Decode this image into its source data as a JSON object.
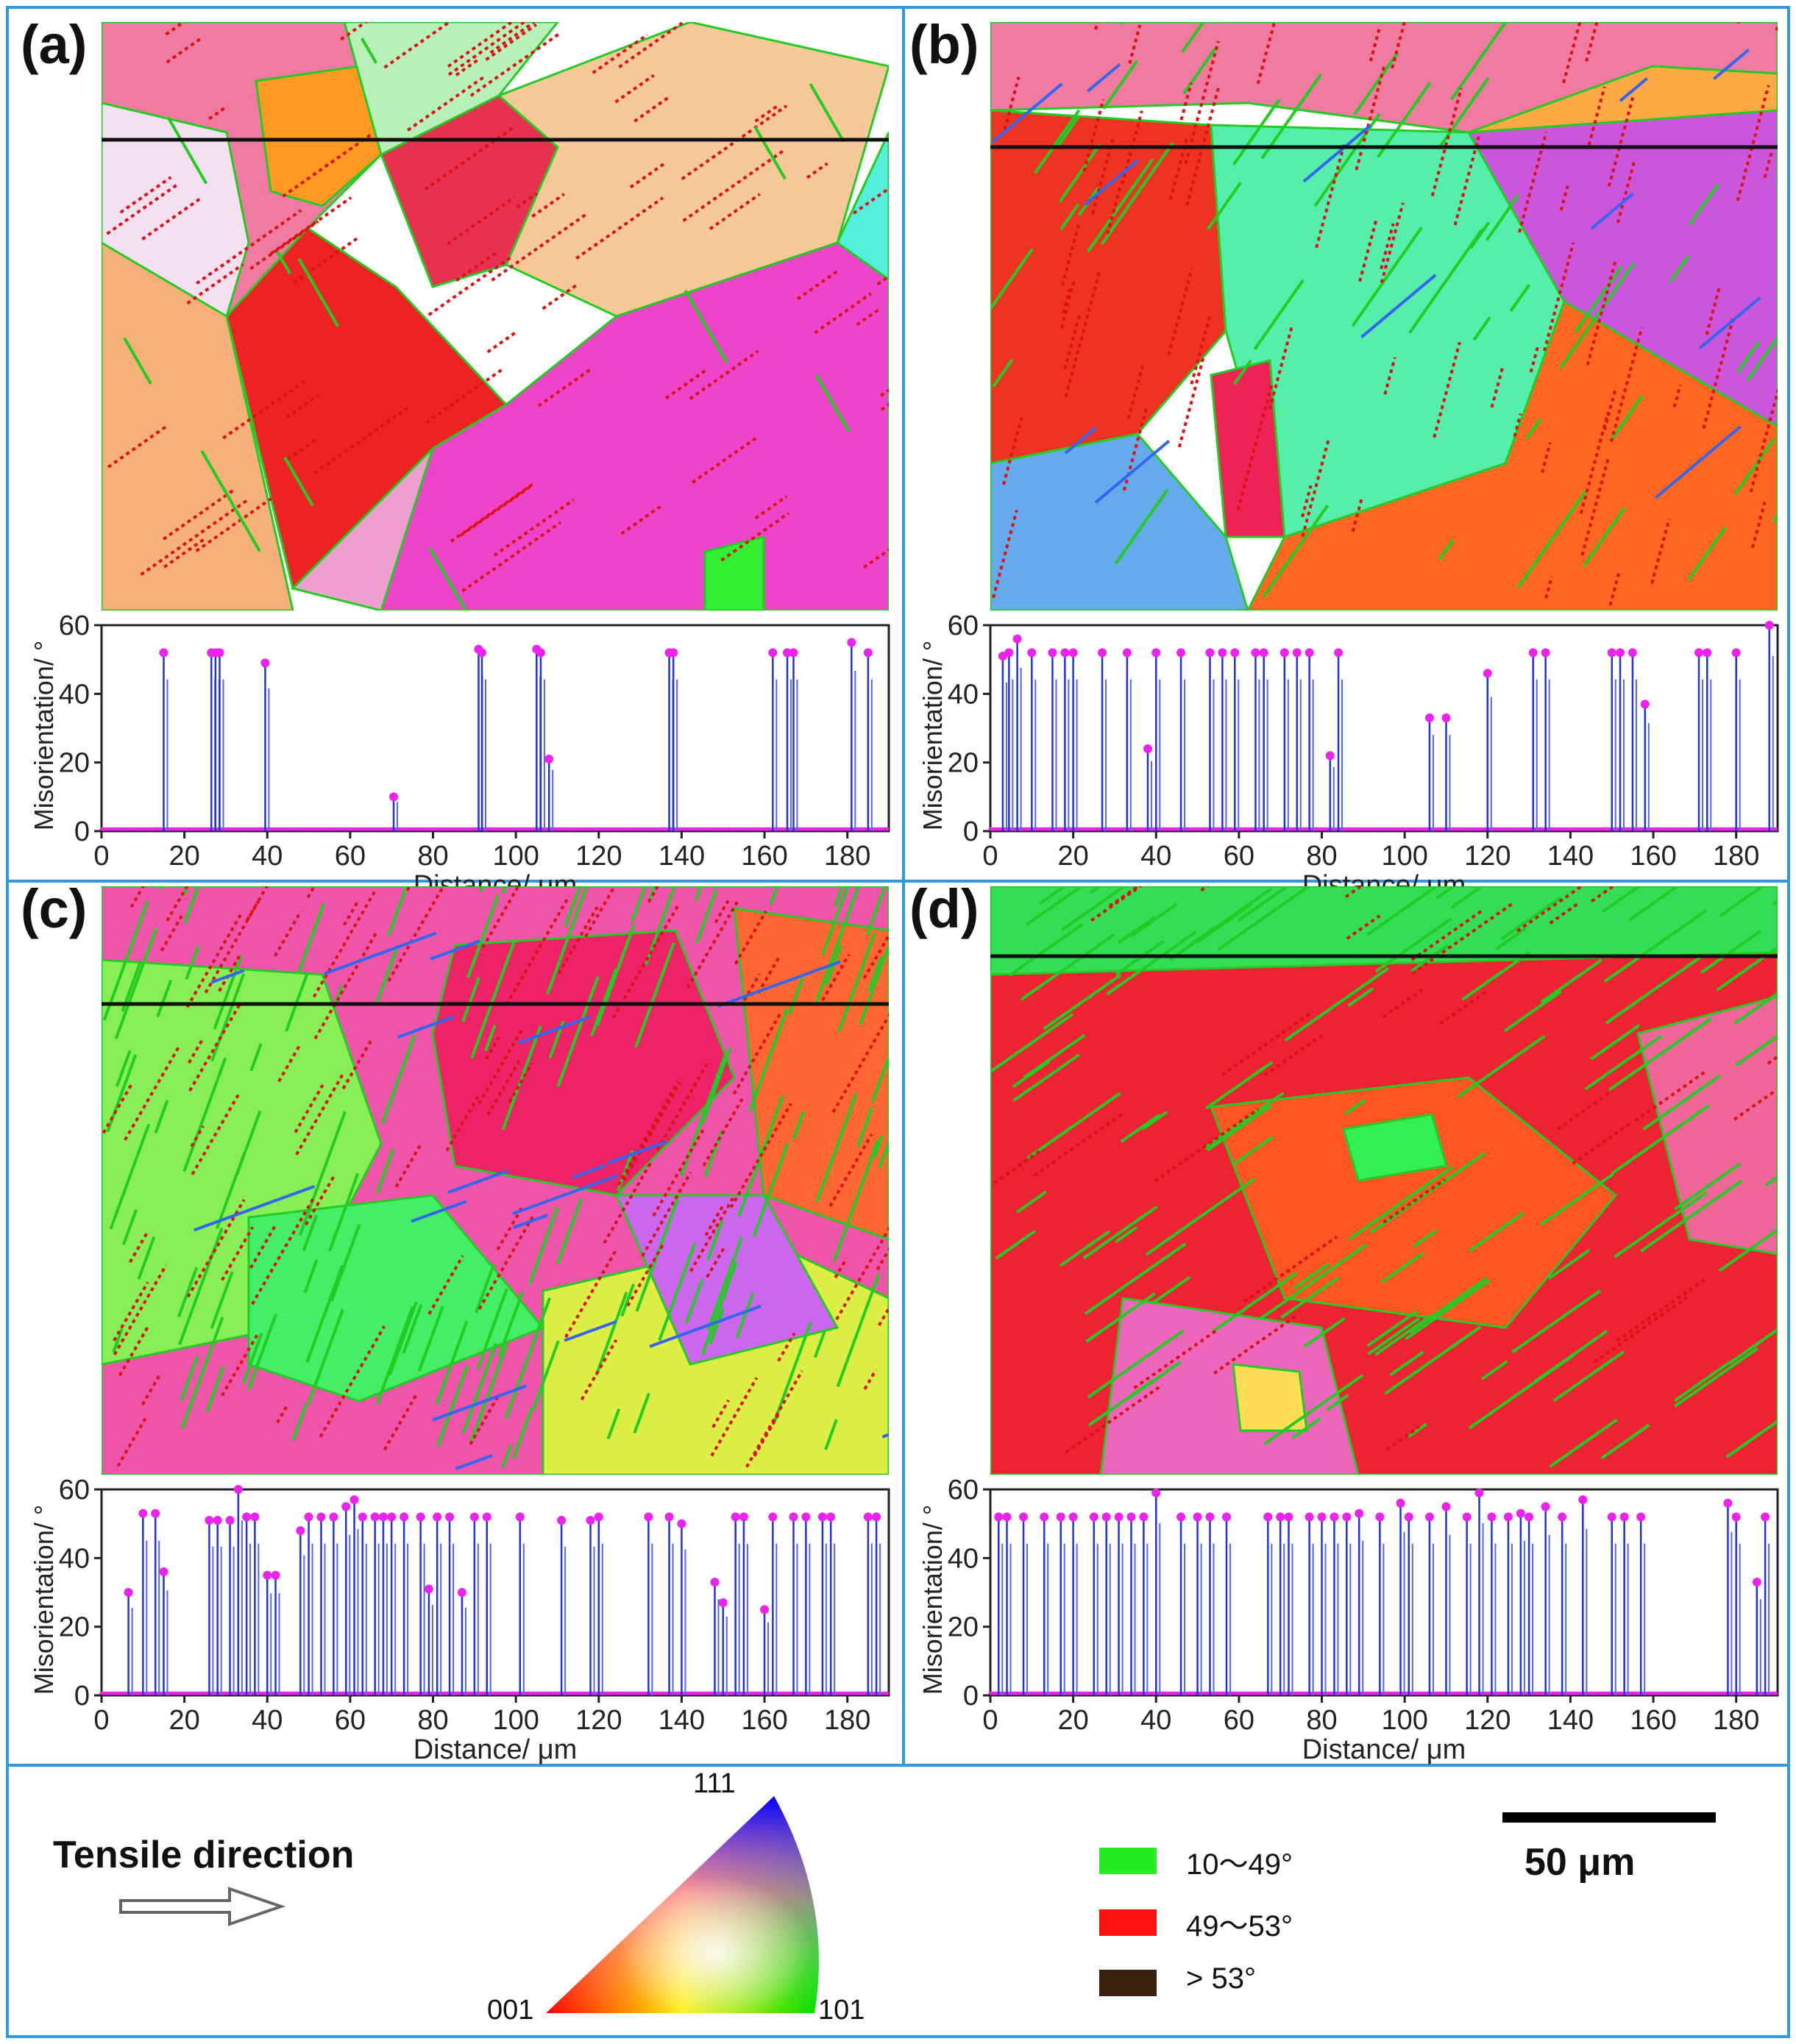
{
  "panels": [
    {
      "label": "(a)"
    },
    {
      "label": "(b)"
    },
    {
      "label": "(c)"
    },
    {
      "label": "(d)"
    }
  ],
  "map_colors": {
    "red": "#ee2222",
    "magenta": "#ee44cc",
    "pink": "#f07aa0",
    "orange": "#ff9922",
    "peach": "#f8b07a",
    "yellow": "#f0e04a",
    "green": "#33ee33",
    "cyan": "#33dddd",
    "blue": "#3366ee",
    "lightblue": "#aaccee",
    "boundary_red": "#dd1111",
    "boundary_green": "#22cc22"
  },
  "legend": {
    "tensile_label": "Tensile direction",
    "ipf_corners": {
      "top": "111",
      "left": "001",
      "right": "101"
    },
    "boundaries": [
      {
        "label": "10～49°",
        "color": "#22ee22"
      },
      {
        "label": "49～53°",
        "color": "#ff1111"
      },
      {
        "label": "> 53°",
        "color": "#3a2010"
      }
    ],
    "scalebar_label": "50 μm"
  },
  "chart_data": [
    {
      "type": "line",
      "panel": "(a)",
      "xlabel": "Distance/ μm",
      "ylabel": "Misorientation/ °",
      "xlim": [
        0,
        190
      ],
      "ylim": [
        0,
        60
      ],
      "xticks": [
        0,
        20,
        40,
        60,
        80,
        100,
        120,
        140,
        160,
        180
      ],
      "yticks": [
        0,
        20,
        40,
        60
      ],
      "peaks": [
        [
          15,
          52
        ],
        [
          26.5,
          52
        ],
        [
          27.5,
          52
        ],
        [
          28.5,
          52
        ],
        [
          39.5,
          49
        ],
        [
          70.5,
          10
        ],
        [
          91,
          53
        ],
        [
          91.8,
          52
        ],
        [
          105,
          53
        ],
        [
          106,
          52
        ],
        [
          108,
          21
        ],
        [
          137,
          52
        ],
        [
          138,
          52
        ],
        [
          162,
          52
        ],
        [
          165.5,
          52
        ],
        [
          167,
          52
        ],
        [
          181,
          55
        ],
        [
          185,
          52
        ]
      ]
    },
    {
      "type": "line",
      "panel": "(b)",
      "xlabel": "Distance/ μm",
      "ylabel": "Misorientation/ °",
      "xlim": [
        0,
        190
      ],
      "ylim": [
        0,
        60
      ],
      "xticks": [
        0,
        20,
        40,
        60,
        80,
        100,
        120,
        140,
        160,
        180
      ],
      "yticks": [
        0,
        20,
        40,
        60
      ],
      "peaks": [
        [
          3,
          51
        ],
        [
          4.5,
          52
        ],
        [
          6.5,
          56
        ],
        [
          10,
          52
        ],
        [
          15,
          52
        ],
        [
          18,
          52
        ],
        [
          20,
          52
        ],
        [
          27,
          52
        ],
        [
          33,
          52
        ],
        [
          38,
          24
        ],
        [
          40,
          52
        ],
        [
          46,
          52
        ],
        [
          53,
          52
        ],
        [
          56,
          52
        ],
        [
          59,
          52
        ],
        [
          64,
          52
        ],
        [
          66,
          52
        ],
        [
          71,
          52
        ],
        [
          74,
          52
        ],
        [
          77,
          52
        ],
        [
          82,
          22
        ],
        [
          84,
          52
        ],
        [
          106,
          33
        ],
        [
          110,
          33
        ],
        [
          120,
          46
        ],
        [
          131,
          52
        ],
        [
          134,
          52
        ],
        [
          150,
          52
        ],
        [
          152,
          52
        ],
        [
          155,
          52
        ],
        [
          158,
          37
        ],
        [
          171,
          52
        ],
        [
          173,
          52
        ],
        [
          180,
          52
        ],
        [
          188,
          60
        ]
      ]
    },
    {
      "type": "line",
      "panel": "(c)",
      "xlabel": "Distance/ μm",
      "ylabel": "Misorientation/ °",
      "xlim": [
        0,
        190
      ],
      "ylim": [
        0,
        60
      ],
      "xticks": [
        0,
        20,
        40,
        60,
        80,
        100,
        120,
        140,
        160,
        180
      ],
      "yticks": [
        0,
        20,
        40,
        60
      ],
      "peaks": [
        [
          6.5,
          30
        ],
        [
          10,
          53
        ],
        [
          13,
          53
        ],
        [
          15,
          36
        ],
        [
          26,
          51
        ],
        [
          28,
          51
        ],
        [
          31,
          51
        ],
        [
          33,
          60
        ],
        [
          35,
          52
        ],
        [
          37,
          52
        ],
        [
          40,
          35
        ],
        [
          42,
          35
        ],
        [
          48,
          48
        ],
        [
          50,
          52
        ],
        [
          53,
          52
        ],
        [
          56,
          52
        ],
        [
          59,
          55
        ],
        [
          61,
          57
        ],
        [
          63,
          52
        ],
        [
          66,
          52
        ],
        [
          68,
          52
        ],
        [
          70,
          52
        ],
        [
          73,
          52
        ],
        [
          77,
          52
        ],
        [
          79,
          31
        ],
        [
          81,
          52
        ],
        [
          84,
          52
        ],
        [
          87,
          30
        ],
        [
          90,
          52
        ],
        [
          93,
          52
        ],
        [
          101,
          52
        ],
        [
          111,
          51
        ],
        [
          118,
          51
        ],
        [
          120,
          52
        ],
        [
          132,
          52
        ],
        [
          137,
          52
        ],
        [
          140,
          50
        ],
        [
          148,
          33
        ],
        [
          150,
          27
        ],
        [
          153,
          52
        ],
        [
          155,
          52
        ],
        [
          160,
          25
        ],
        [
          162,
          52
        ],
        [
          167,
          52
        ],
        [
          170,
          52
        ],
        [
          174,
          52
        ],
        [
          176,
          52
        ],
        [
          185,
          52
        ],
        [
          187,
          52
        ]
      ]
    },
    {
      "type": "line",
      "panel": "(d)",
      "xlabel": "Distance/ μm",
      "ylabel": "Misorientation/ °",
      "xlim": [
        0,
        190
      ],
      "ylim": [
        0,
        60
      ],
      "xticks": [
        0,
        20,
        40,
        60,
        80,
        100,
        120,
        140,
        160,
        180
      ],
      "yticks": [
        0,
        20,
        40,
        60
      ],
      "peaks": [
        [
          2,
          52
        ],
        [
          4,
          52
        ],
        [
          8,
          52
        ],
        [
          13,
          52
        ],
        [
          17,
          52
        ],
        [
          20,
          52
        ],
        [
          25,
          52
        ],
        [
          28,
          52
        ],
        [
          31,
          52
        ],
        [
          34,
          52
        ],
        [
          37,
          52
        ],
        [
          40,
          59
        ],
        [
          46,
          52
        ],
        [
          50,
          52
        ],
        [
          53,
          52
        ],
        [
          57,
          52
        ],
        [
          67,
          52
        ],
        [
          70,
          52
        ],
        [
          72,
          52
        ],
        [
          77,
          52
        ],
        [
          80,
          52
        ],
        [
          83,
          52
        ],
        [
          86,
          52
        ],
        [
          89,
          53
        ],
        [
          94,
          52
        ],
        [
          99,
          56
        ],
        [
          101,
          52
        ],
        [
          106,
          52
        ],
        [
          110,
          55
        ],
        [
          115,
          52
        ],
        [
          118,
          59
        ],
        [
          121,
          52
        ],
        [
          125,
          52
        ],
        [
          128,
          53
        ],
        [
          130,
          52
        ],
        [
          134,
          55
        ],
        [
          138,
          52
        ],
        [
          143,
          57
        ],
        [
          150,
          52
        ],
        [
          153,
          52
        ],
        [
          157,
          52
        ],
        [
          178,
          56
        ],
        [
          180,
          52
        ],
        [
          185,
          33
        ],
        [
          187,
          52
        ]
      ]
    }
  ]
}
